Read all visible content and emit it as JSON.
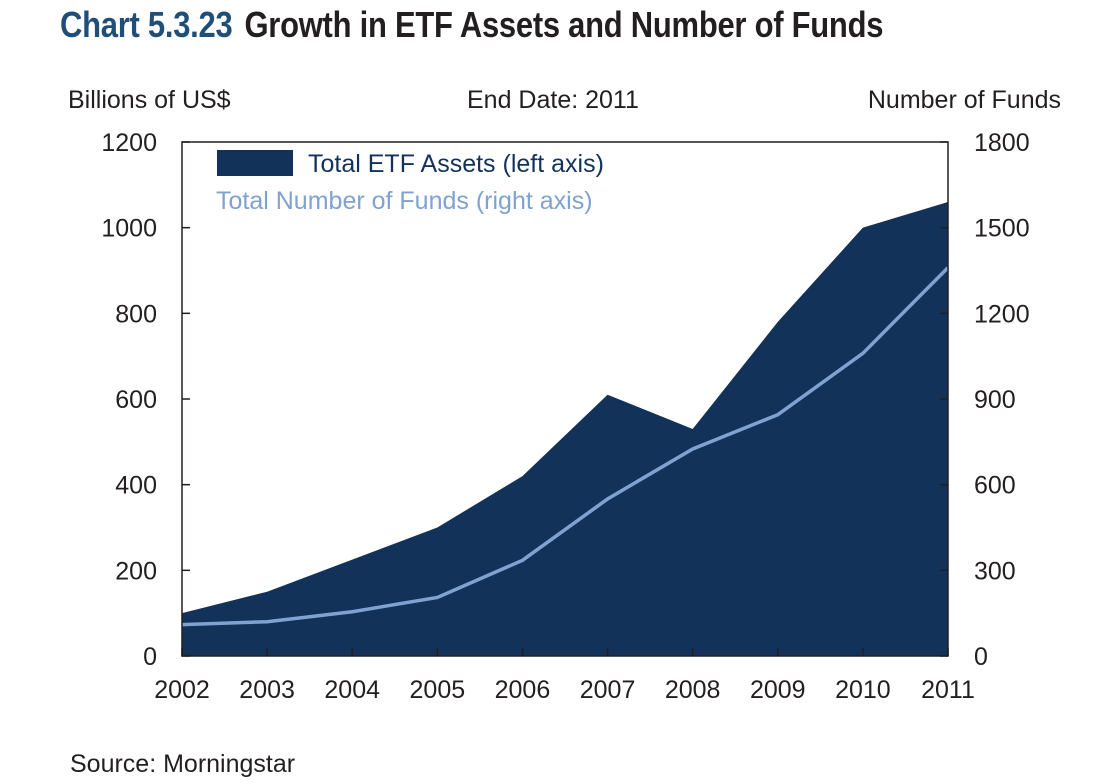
{
  "header": {
    "chart_number": "Chart 5.3.23",
    "chart_title": "Growth in ETF Assets and Number of Funds",
    "left_axis_title": "Billions of US$",
    "center_note": "End Date: 2011",
    "right_axis_title": "Number of Funds"
  },
  "footer": {
    "source": "Source: Morningstar"
  },
  "colors": {
    "assets_fill": "#12325a",
    "funds_line": "#7fa2d0",
    "axis": "#231f20"
  },
  "chart_data": {
    "type": "area",
    "title": "Growth in ETF Assets and Number of Funds",
    "x": [
      "2002",
      "2003",
      "2004",
      "2005",
      "2006",
      "2007",
      "2008",
      "2009",
      "2010",
      "2011"
    ],
    "series": [
      {
        "name": "Total ETF Assets (left axis)",
        "type": "area",
        "axis": "left",
        "values": [
          100,
          150,
          225,
          300,
          420,
          610,
          530,
          780,
          1000,
          1060
        ]
      },
      {
        "name": "Total Number of Funds (right axis)",
        "type": "line",
        "axis": "right",
        "values": [
          110,
          120,
          155,
          205,
          335,
          550,
          725,
          845,
          1060,
          1360
        ]
      }
    ],
    "left_axis": {
      "label": "Billions of US$",
      "ylim": [
        0,
        1200
      ],
      "ticks": [
        0,
        200,
        400,
        600,
        800,
        1000,
        1200
      ]
    },
    "right_axis": {
      "label": "Number of Funds",
      "ylim": [
        0,
        1800
      ],
      "ticks": [
        0,
        300,
        600,
        900,
        1200,
        1500,
        1800
      ]
    },
    "legend_placement": "top-left",
    "grid": false
  }
}
